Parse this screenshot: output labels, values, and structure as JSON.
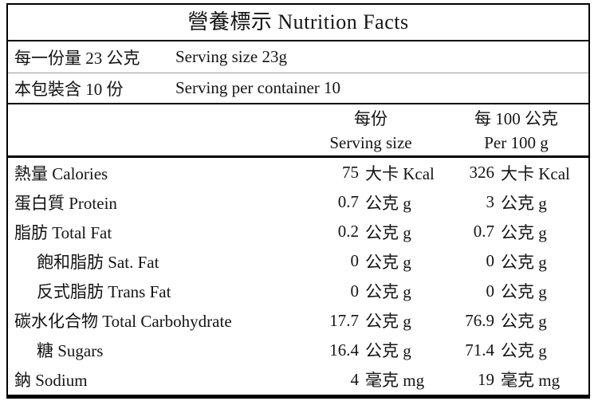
{
  "title": "營養標示 Nutrition Facts",
  "serving_info": [
    {
      "zh": "每一份量 23 公克",
      "en": "Serving size 23g"
    },
    {
      "zh": "本包裝含 10 份",
      "en": "Serving per container 10"
    }
  ],
  "columns": [
    {
      "zh": "每份",
      "en": "Serving size"
    },
    {
      "zh": "每 100 公克",
      "en": "Per 100 g"
    }
  ],
  "rows": [
    {
      "label": "熱量 Calories",
      "indent": false,
      "per_serving": {
        "value": "75",
        "unit": "大卡 Kcal"
      },
      "per_100g": {
        "value": "326",
        "unit": "大卡 Kcal"
      }
    },
    {
      "label": "蛋白質 Protein",
      "indent": false,
      "per_serving": {
        "value": "0.7",
        "unit": "公克 g"
      },
      "per_100g": {
        "value": "3",
        "unit": "公克 g"
      }
    },
    {
      "label": "脂肪 Total Fat",
      "indent": false,
      "per_serving": {
        "value": "0.2",
        "unit": "公克 g"
      },
      "per_100g": {
        "value": "0.7",
        "unit": "公克 g"
      }
    },
    {
      "label": "飽和脂肪 Sat. Fat",
      "indent": true,
      "per_serving": {
        "value": "0",
        "unit": "公克 g"
      },
      "per_100g": {
        "value": "0",
        "unit": "公克 g"
      }
    },
    {
      "label": "反式脂肪 Trans Fat",
      "indent": true,
      "per_serving": {
        "value": "0",
        "unit": "公克 g"
      },
      "per_100g": {
        "value": "0",
        "unit": "公克 g"
      }
    },
    {
      "label": "碳水化合物 Total Carbohydrate",
      "indent": false,
      "per_serving": {
        "value": "17.7",
        "unit": "公克 g"
      },
      "per_100g": {
        "value": "76.9",
        "unit": "公克 g"
      }
    },
    {
      "label": "糖 Sugars",
      "indent": true,
      "per_serving": {
        "value": "16.4",
        "unit": "公克 g"
      },
      "per_100g": {
        "value": "71.4",
        "unit": "公克 g"
      }
    },
    {
      "label": "鈉 Sodium",
      "indent": false,
      "per_serving": {
        "value": "4",
        "unit": "毫克 mg"
      },
      "per_100g": {
        "value": "19",
        "unit": "毫克 mg"
      }
    }
  ]
}
